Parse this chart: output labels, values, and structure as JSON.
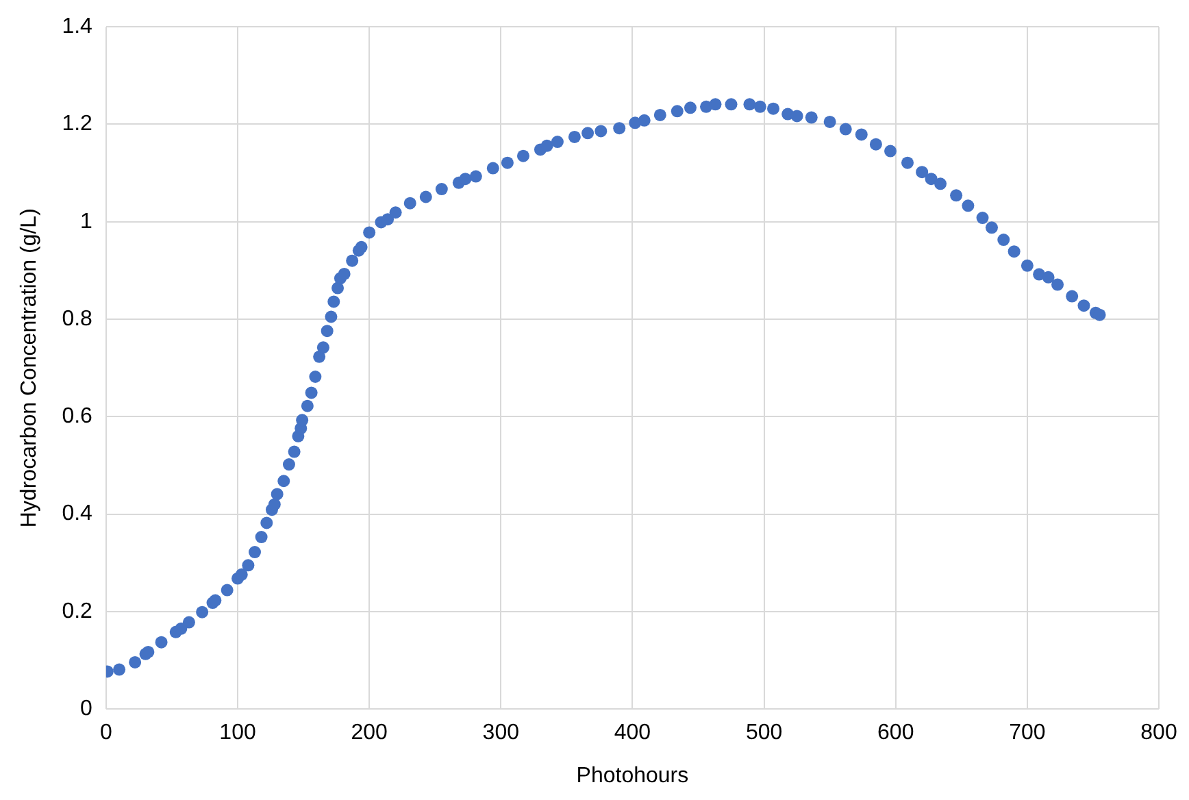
{
  "chart_data": {
    "type": "scatter",
    "xlabel": "Photohours",
    "ylabel": "Hydrocarbon Concentration (g/L)",
    "x": [
      1,
      10,
      22,
      30,
      32,
      42,
      53,
      57,
      63,
      73,
      81,
      83,
      92,
      100,
      103,
      108,
      113,
      118,
      122,
      126,
      128,
      130,
      135,
      139,
      143,
      146,
      148,
      149,
      153,
      156,
      159,
      162,
      165,
      168,
      171,
      173,
      176,
      178,
      181,
      187,
      192,
      194,
      200,
      209,
      214,
      220,
      231,
      243,
      255,
      268,
      273,
      281,
      294,
      305,
      317,
      330,
      335,
      343,
      356,
      366,
      376,
      390,
      402,
      409,
      421,
      434,
      444,
      456,
      463,
      475,
      489,
      497,
      507,
      518,
      525,
      536,
      550,
      562,
      574,
      585,
      596,
      609,
      620,
      627,
      634,
      646,
      655,
      666,
      673,
      682,
      690,
      700,
      709,
      716,
      723,
      734,
      743,
      752,
      755
    ],
    "series": [
      {
        "color": "#4472c4",
        "values": [
          0.077,
          0.081,
          0.096,
          0.113,
          0.117,
          0.137,
          0.158,
          0.165,
          0.178,
          0.199,
          0.218,
          0.223,
          0.244,
          0.268,
          0.276,
          0.295,
          0.322,
          0.353,
          0.382,
          0.409,
          0.42,
          0.441,
          0.468,
          0.502,
          0.528,
          0.56,
          0.576,
          0.593,
          0.622,
          0.649,
          0.682,
          0.723,
          0.742,
          0.776,
          0.805,
          0.836,
          0.864,
          0.884,
          0.893,
          0.92,
          0.941,
          0.948,
          0.978,
          0.999,
          1.005,
          1.019,
          1.038,
          1.051,
          1.067,
          1.08,
          1.088,
          1.093,
          1.11,
          1.121,
          1.135,
          1.148,
          1.156,
          1.164,
          1.174,
          1.182,
          1.186,
          1.192,
          1.203,
          1.208,
          1.219,
          1.227,
          1.234,
          1.236,
          1.241,
          1.241,
          1.241,
          1.236,
          1.232,
          1.221,
          1.217,
          1.214,
          1.205,
          1.19,
          1.179,
          1.159,
          1.145,
          1.121,
          1.102,
          1.088,
          1.078,
          1.054,
          1.033,
          1.008,
          0.988,
          0.963,
          0.939,
          0.91,
          0.892,
          0.886,
          0.871,
          0.847,
          0.828,
          0.813,
          0.809
        ]
      }
    ],
    "xlim": [
      0,
      800
    ],
    "xticks": [
      0,
      100,
      200,
      300,
      400,
      500,
      600,
      700,
      800
    ],
    "ylim": [
      0,
      1.4
    ],
    "yticks": [
      0,
      0.2,
      0.4,
      0.6,
      0.8,
      1,
      1.2,
      1.4
    ],
    "grid": true,
    "legend": false,
    "marker": "circle"
  }
}
